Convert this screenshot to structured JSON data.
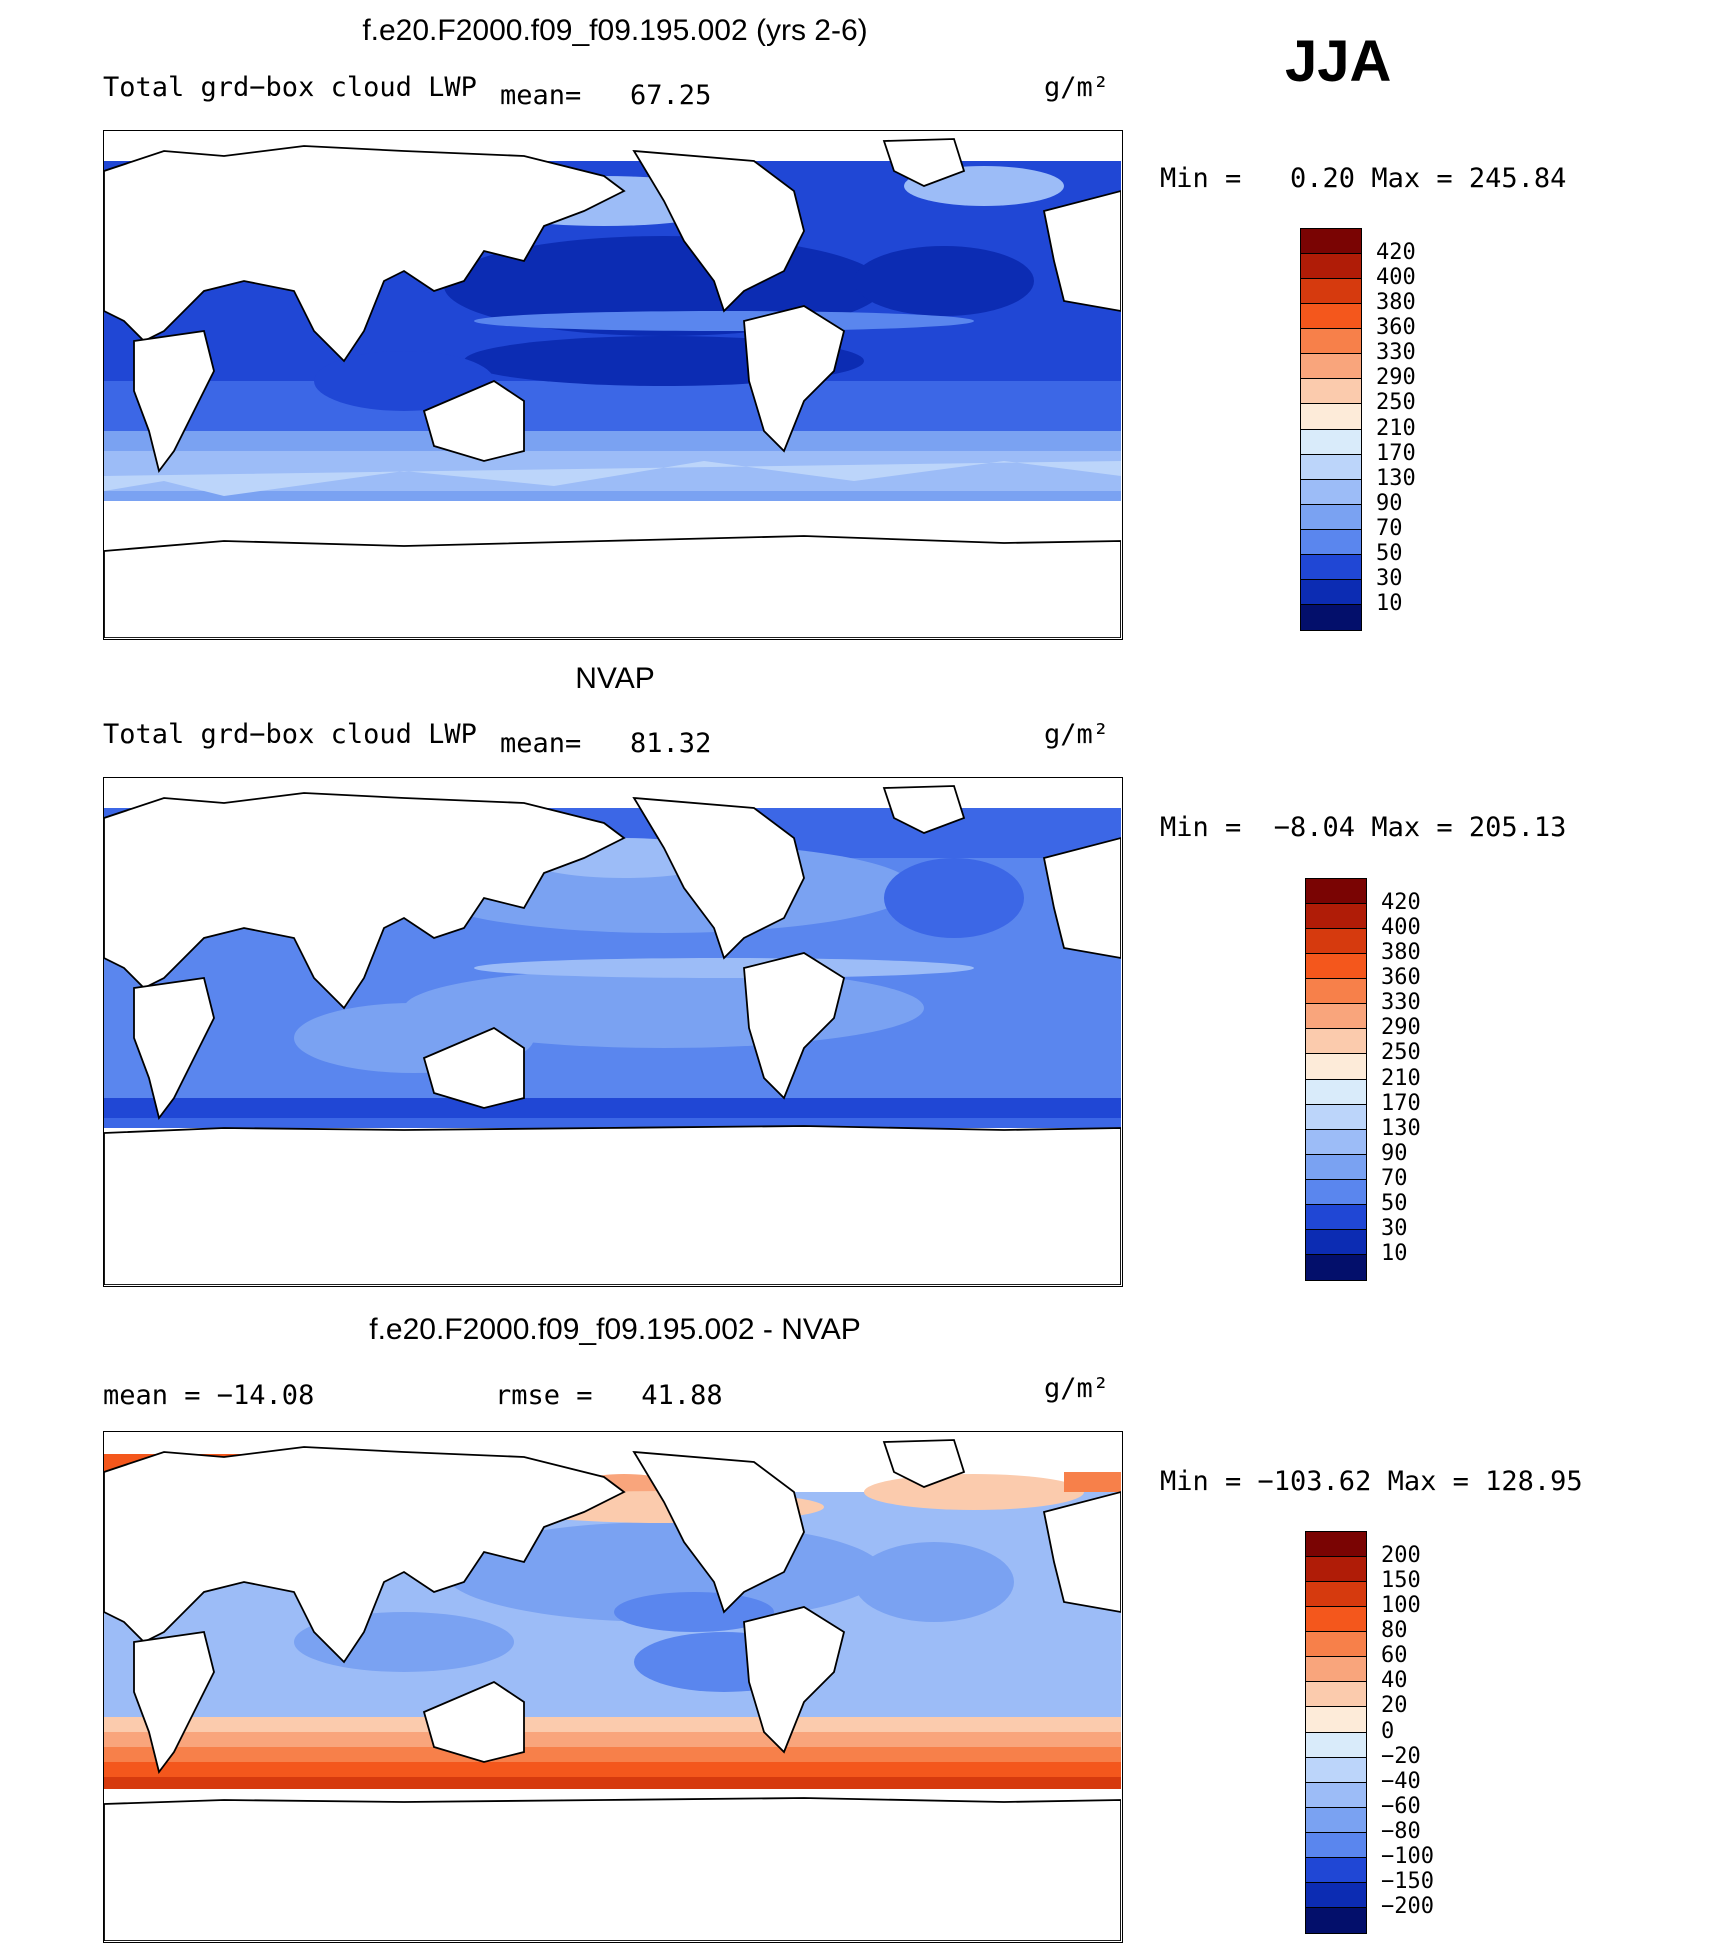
{
  "season": "JJA",
  "panels": [
    {
      "title": "f.e20.F2000.f09_f09.195.002 (yrs 2-6)",
      "left_label": "Total grd−box cloud LWP",
      "mean_label": "mean=   67.25",
      "units": "g/m²",
      "minmax": "Min =   0.20 Max = 245.84",
      "colorbar_labels": [
        "420",
        "400",
        "380",
        "360",
        "330",
        "290",
        "250",
        "210",
        "170",
        "130",
        "90",
        "70",
        "50",
        "30",
        "10"
      ]
    },
    {
      "title": "NVAP",
      "left_label": "Total grd−box cloud LWP",
      "mean_label": "mean=   81.32",
      "units": "g/m²",
      "minmax": "Min =  −8.04 Max = 205.13",
      "colorbar_labels": [
        "420",
        "400",
        "380",
        "360",
        "330",
        "290",
        "250",
        "210",
        "170",
        "130",
        "90",
        "70",
        "50",
        "30",
        "10"
      ]
    },
    {
      "title": "f.e20.F2000.f09_f09.195.002 - NVAP",
      "left_label": "mean = −14.08",
      "mean_label": "rmse =   41.88",
      "units": "g/m²",
      "minmax": "Min = −103.62 Max = 128.95",
      "colorbar_labels": [
        "200",
        "150",
        "100",
        "80",
        "60",
        "40",
        "20",
        "0",
        "−20",
        "−40",
        "−60",
        "−80",
        "−100",
        "−150",
        "−200"
      ]
    }
  ],
  "colors": {
    "scale": [
      "#7a0403",
      "#b01c07",
      "#d63a0e",
      "#f4571c",
      "#f7804a",
      "#f9a57c",
      "#fbcbad",
      "#fdebd9",
      "#d9ebfa",
      "#bcd5fa",
      "#9cbcf7",
      "#7aa2f2",
      "#5a86ee",
      "#3c67e6",
      "#2047d5",
      "#0c2cb3",
      "#061b8d",
      "#030f6b"
    ]
  }
}
